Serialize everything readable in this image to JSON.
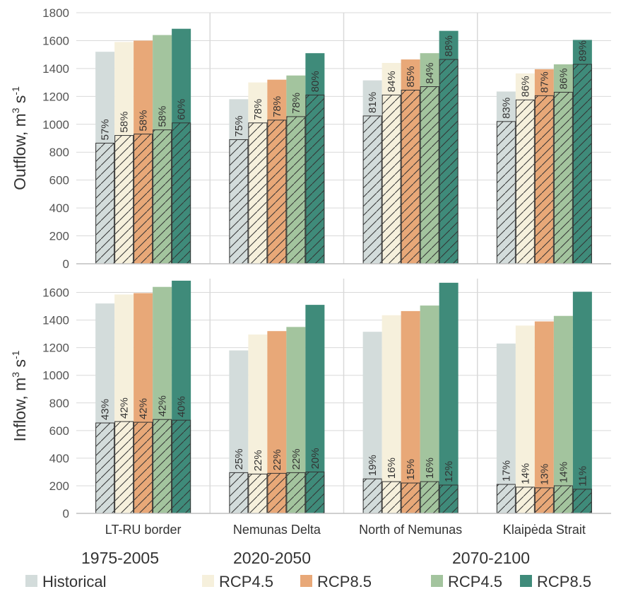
{
  "chart_data": {
    "type": "bar",
    "categories": [
      "LT-RU border",
      "Nemunas Delta",
      "North of Nemunas",
      "Klaipėda Strait"
    ],
    "series_colors": [
      "#d3dcdb",
      "#f6f0dc",
      "#e8a878",
      "#a3c49e",
      "#3f8b7a"
    ],
    "legend": [
      {
        "label": "Historical",
        "color": "#d3dcdb"
      },
      {
        "label": "RCP4.5",
        "color": "#f6f0dc"
      },
      {
        "label": "RCP8.5",
        "color": "#e8a878"
      },
      {
        "label": "RCP4.5",
        "color": "#a3c49e"
      },
      {
        "label": "RCP8.5",
        "color": "#3f8b7a"
      }
    ],
    "periods": [
      {
        "label": "1975-2005"
      },
      {
        "label": "2020-2050"
      },
      {
        "label": "2070-2100"
      }
    ],
    "panels": [
      {
        "ylabel_main": "Outflow, m",
        "ylabel_sup": "3",
        "ylabel_mid": " s",
        "ylabel_sup2": "-1",
        "ylim": [
          0,
          1800
        ],
        "yticks": [
          "0",
          "200",
          "400",
          "600",
          "800",
          "1000",
          "1200",
          "1400",
          "1600",
          "1800"
        ],
        "totals": [
          [
            1520,
            1590,
            1600,
            1640,
            1685
          ],
          [
            1180,
            1300,
            1320,
            1350,
            1510
          ],
          [
            1315,
            1440,
            1465,
            1510,
            1670
          ],
          [
            1235,
            1365,
            1395,
            1430,
            1605
          ]
        ],
        "hatched": [
          [
            865,
            920,
            930,
            960,
            1010
          ],
          [
            890,
            1010,
            1030,
            1055,
            1210
          ],
          [
            1060,
            1210,
            1245,
            1270,
            1465
          ],
          [
            1020,
            1175,
            1205,
            1230,
            1430
          ]
        ],
        "labels": [
          [
            "57%",
            "58%",
            "58%",
            "58%",
            "60%"
          ],
          [
            "75%",
            "78%",
            "78%",
            "78%",
            "80%"
          ],
          [
            "81%",
            "84%",
            "85%",
            "84%",
            "88%"
          ],
          [
            "83%",
            "86%",
            "87%",
            "86%",
            "89%"
          ]
        ]
      },
      {
        "ylabel_main": "Inflow, m",
        "ylabel_sup": "3",
        "ylabel_mid": " s",
        "ylabel_sup2": "-1",
        "ylim": [
          0,
          1800
        ],
        "yticks": [
          "0",
          "200",
          "400",
          "600",
          "800",
          "1000",
          "1200",
          "1400",
          "1600"
        ],
        "totals": [
          [
            1520,
            1585,
            1595,
            1640,
            1685
          ],
          [
            1180,
            1295,
            1320,
            1350,
            1510
          ],
          [
            1315,
            1435,
            1465,
            1505,
            1670
          ],
          [
            1230,
            1360,
            1390,
            1430,
            1605
          ]
        ],
        "hatched": [
          [
            655,
            665,
            660,
            680,
            675
          ],
          [
            295,
            285,
            290,
            295,
            300
          ],
          [
            250,
            230,
            220,
            230,
            205
          ],
          [
            210,
            190,
            185,
            200,
            175
          ]
        ],
        "labels": [
          [
            "43%",
            "42%",
            "42%",
            "42%",
            "40%"
          ],
          [
            "25%",
            "22%",
            "22%",
            "22%",
            "20%"
          ],
          [
            "19%",
            "16%",
            "15%",
            "16%",
            "12%"
          ],
          [
            "17%",
            "14%",
            "13%",
            "14%",
            "11%"
          ]
        ]
      }
    ]
  }
}
